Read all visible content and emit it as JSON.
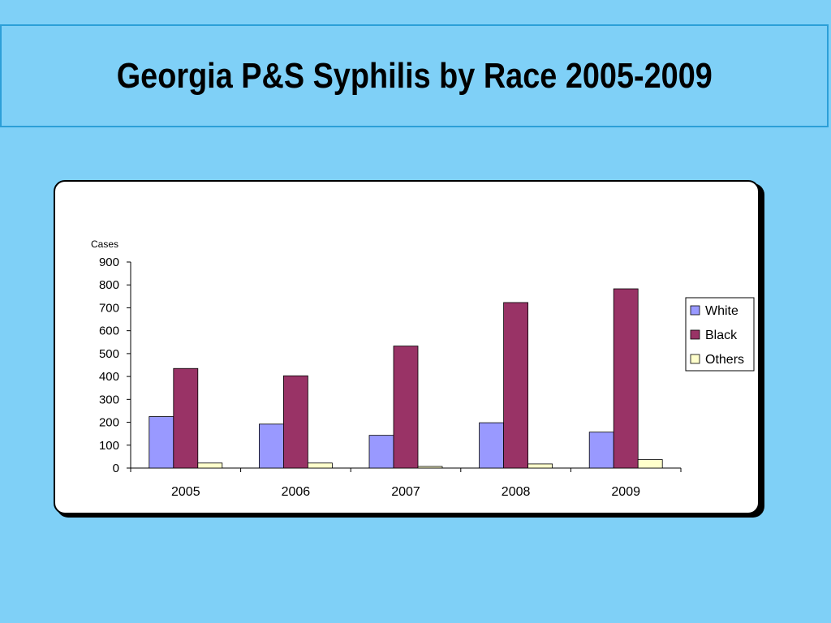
{
  "slide": {
    "title": "Georgia P&S Syphilis by Race 2005-2009"
  },
  "chart_data": {
    "type": "bar",
    "ylabel": "Cases",
    "xlabel": "",
    "categories": [
      "2005",
      "2006",
      "2007",
      "2008",
      "2009"
    ],
    "ylim": [
      0,
      900
    ],
    "yticks": [
      0,
      100,
      200,
      300,
      400,
      500,
      600,
      700,
      800,
      900
    ],
    "grid": false,
    "legend_position": "right",
    "series": [
      {
        "name": "White",
        "color": "#9999ff",
        "values": [
          225,
          192,
          143,
          198,
          157
        ]
      },
      {
        "name": "Black",
        "color": "#993366",
        "values": [
          435,
          403,
          533,
          723,
          783
        ]
      },
      {
        "name": "Others",
        "color": "#ffffcc",
        "values": [
          22,
          22,
          7,
          18,
          37
        ]
      }
    ]
  }
}
